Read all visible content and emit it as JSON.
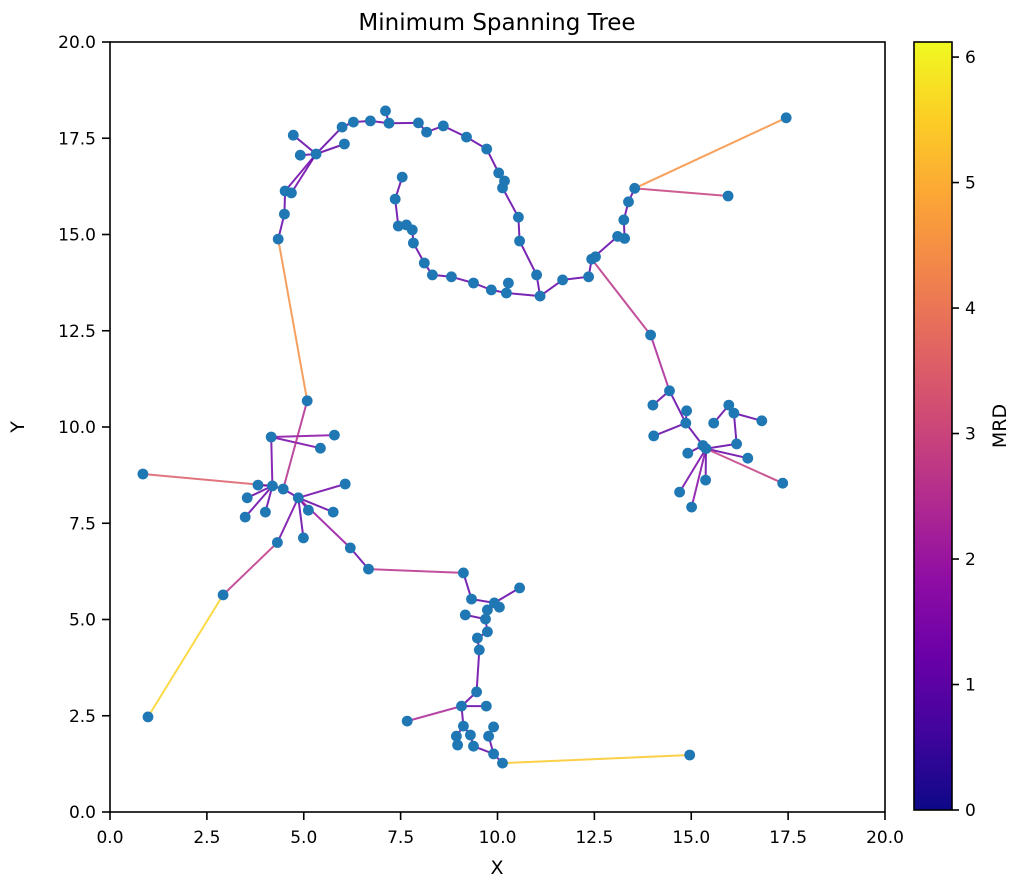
{
  "chart_data": {
    "type": "scatter",
    "title": "Minimum Spanning Tree",
    "xlabel": "X",
    "ylabel": "Y",
    "xlim": [
      0,
      20
    ],
    "ylim": [
      0,
      20
    ],
    "xticks": [
      0,
      2.5,
      5,
      7.5,
      10,
      12.5,
      15,
      17.5,
      20
    ],
    "xtick_labels": [
      "0.0",
      "2.5",
      "5.0",
      "7.5",
      "10.0",
      "12.5",
      "15.0",
      "17.5",
      "20.0"
    ],
    "yticks": [
      0,
      2.5,
      5,
      7.5,
      10,
      12.5,
      15,
      17.5,
      20
    ],
    "ytick_labels": [
      "0.0",
      "2.5",
      "5.0",
      "7.5",
      "10.0",
      "12.5",
      "15.0",
      "17.5",
      "20.0"
    ],
    "grid": false,
    "colorbar": {
      "label": "MRD",
      "vmin": 0,
      "vmax": 6.12,
      "ticks": [
        0,
        1,
        2,
        3,
        4,
        5,
        6
      ],
      "tick_labels": [
        "0",
        "1",
        "2",
        "3",
        "4",
        "5",
        "6"
      ],
      "colormap": "plasma"
    },
    "edge_color_rule": "edge MRD estimated as max(1.1, 1.05*euclidean_length) unless an explicit mrd value is given as third element of edge entry",
    "nodes": [
      [
        4.73,
        17.58
      ],
      [
        4.91,
        17.06
      ],
      [
        5.32,
        17.09
      ],
      [
        5.99,
        17.79
      ],
      [
        6.05,
        17.35
      ],
      [
        6.28,
        17.92
      ],
      [
        6.72,
        17.95
      ],
      [
        7.11,
        18.21
      ],
      [
        7.2,
        17.89
      ],
      [
        7.96,
        17.9
      ],
      [
        8.17,
        17.66
      ],
      [
        8.6,
        17.82
      ],
      [
        9.2,
        17.53
      ],
      [
        9.72,
        17.22
      ],
      [
        10.03,
        16.6
      ],
      [
        10.18,
        16.39
      ],
      [
        10.13,
        16.21
      ],
      [
        10.54,
        15.45
      ],
      [
        10.57,
        14.83
      ],
      [
        11.01,
        13.95
      ],
      [
        4.52,
        16.13
      ],
      [
        4.68,
        16.08
      ],
      [
        4.5,
        15.53
      ],
      [
        4.34,
        14.88
      ],
      [
        7.54,
        16.49
      ],
      [
        7.36,
        15.92
      ],
      [
        7.44,
        15.22
      ],
      [
        7.65,
        15.25
      ],
      [
        7.8,
        15.12
      ],
      [
        7.83,
        14.78
      ],
      [
        8.11,
        14.26
      ],
      [
        8.32,
        13.95
      ],
      [
        8.81,
        13.9
      ],
      [
        9.38,
        13.74
      ],
      [
        9.84,
        13.56
      ],
      [
        10.28,
        13.74
      ],
      [
        10.23,
        13.48
      ],
      [
        11.1,
        13.4
      ],
      [
        11.68,
        13.82
      ],
      [
        12.35,
        13.9
      ],
      [
        12.43,
        14.36
      ],
      [
        12.53,
        14.42
      ],
      [
        13.1,
        14.95
      ],
      [
        13.28,
        14.9
      ],
      [
        13.26,
        15.38
      ],
      [
        13.38,
        15.85
      ],
      [
        13.54,
        16.2
      ],
      [
        17.45,
        18.03
      ],
      [
        15.95,
        16.0
      ],
      [
        13.95,
        12.39
      ],
      [
        14.44,
        10.94
      ],
      [
        14.01,
        10.57
      ],
      [
        14.88,
        10.42
      ],
      [
        14.86,
        10.1
      ],
      [
        14.03,
        9.77
      ],
      [
        15.58,
        10.1
      ],
      [
        15.97,
        10.57
      ],
      [
        16.1,
        10.36
      ],
      [
        16.82,
        10.16
      ],
      [
        15.3,
        9.52
      ],
      [
        15.38,
        9.44
      ],
      [
        14.91,
        9.32
      ],
      [
        16.17,
        9.56
      ],
      [
        16.46,
        9.19
      ],
      [
        17.36,
        8.54
      ],
      [
        15.37,
        8.62
      ],
      [
        14.7,
        8.31
      ],
      [
        15.01,
        7.92
      ],
      [
        0.85,
        8.78
      ],
      [
        3.82,
        8.49
      ],
      [
        4.19,
        8.47
      ],
      [
        4.47,
        8.39
      ],
      [
        3.54,
        8.16
      ],
      [
        3.49,
        7.66
      ],
      [
        4.01,
        7.79
      ],
      [
        4.86,
        8.16
      ],
      [
        5.12,
        7.84
      ],
      [
        5.76,
        7.79
      ],
      [
        6.07,
        8.52
      ],
      [
        4.16,
        9.74
      ],
      [
        5.43,
        9.45
      ],
      [
        5.79,
        9.79
      ],
      [
        5.09,
        10.68
      ],
      [
        4.32,
        7.0
      ],
      [
        4.99,
        7.12
      ],
      [
        6.2,
        6.86
      ],
      [
        6.67,
        6.31
      ],
      [
        2.92,
        5.64
      ],
      [
        0.98,
        2.47
      ],
      [
        9.12,
        6.21
      ],
      [
        10.57,
        5.82
      ],
      [
        9.33,
        5.53
      ],
      [
        9.92,
        5.43
      ],
      [
        10.05,
        5.32
      ],
      [
        9.74,
        5.25
      ],
      [
        9.17,
        5.12
      ],
      [
        9.69,
        5.01
      ],
      [
        9.74,
        4.68
      ],
      [
        9.48,
        4.52
      ],
      [
        9.53,
        4.21
      ],
      [
        9.46,
        3.12
      ],
      [
        9.07,
        2.75
      ],
      [
        9.71,
        2.75
      ],
      [
        7.67,
        2.36
      ],
      [
        9.12,
        2.23
      ],
      [
        9.9,
        2.21
      ],
      [
        8.94,
        1.97
      ],
      [
        9.3,
        2.0
      ],
      [
        9.77,
        1.97
      ],
      [
        8.97,
        1.74
      ],
      [
        9.38,
        1.71
      ],
      [
        9.9,
        1.51
      ],
      [
        10.13,
        1.27
      ],
      [
        14.96,
        1.48
      ]
    ],
    "edges": [
      [
        0,
        2
      ],
      [
        1,
        2
      ],
      [
        2,
        3
      ],
      [
        2,
        4
      ],
      [
        3,
        5
      ],
      [
        5,
        6
      ],
      [
        6,
        8
      ],
      [
        7,
        8
      ],
      [
        8,
        9
      ],
      [
        9,
        10
      ],
      [
        10,
        11
      ],
      [
        11,
        12
      ],
      [
        12,
        13
      ],
      [
        13,
        14
      ],
      [
        14,
        15
      ],
      [
        15,
        16
      ],
      [
        16,
        17
      ],
      [
        17,
        18
      ],
      [
        18,
        19
      ],
      [
        19,
        37
      ],
      [
        2,
        20
      ],
      [
        2,
        21
      ],
      [
        20,
        22
      ],
      [
        22,
        23
      ],
      [
        23,
        82
      ],
      [
        24,
        25
      ],
      [
        25,
        26
      ],
      [
        26,
        27
      ],
      [
        27,
        28
      ],
      [
        28,
        29
      ],
      [
        29,
        30
      ],
      [
        30,
        31
      ],
      [
        31,
        32
      ],
      [
        32,
        33
      ],
      [
        33,
        34
      ],
      [
        34,
        36
      ],
      [
        35,
        36
      ],
      [
        36,
        37
      ],
      [
        37,
        38
      ],
      [
        38,
        39
      ],
      [
        39,
        40
      ],
      [
        40,
        41
      ],
      [
        42,
        40
      ],
      [
        43,
        42
      ],
      [
        44,
        43
      ],
      [
        45,
        44
      ],
      [
        46,
        45
      ],
      [
        46,
        47
      ],
      [
        46,
        48,
        2.9
      ],
      [
        40,
        49
      ],
      [
        49,
        50,
        2.3
      ],
      [
        50,
        51
      ],
      [
        50,
        53
      ],
      [
        52,
        53
      ],
      [
        53,
        54
      ],
      [
        53,
        59
      ],
      [
        59,
        60
      ],
      [
        59,
        61
      ],
      [
        60,
        62
      ],
      [
        55,
        56
      ],
      [
        56,
        57
      ],
      [
        57,
        58
      ],
      [
        57,
        62
      ],
      [
        60,
        63
      ],
      [
        60,
        64,
        2.8
      ],
      [
        60,
        65
      ],
      [
        60,
        66
      ],
      [
        60,
        67
      ],
      [
        68,
        70
      ],
      [
        69,
        70
      ],
      [
        70,
        71
      ],
      [
        71,
        75
      ],
      [
        70,
        72
      ],
      [
        70,
        73
      ],
      [
        70,
        74
      ],
      [
        75,
        76
      ],
      [
        75,
        77
      ],
      [
        75,
        78
      ],
      [
        75,
        83
      ],
      [
        75,
        84
      ],
      [
        75,
        85
      ],
      [
        79,
        70
      ],
      [
        79,
        81
      ],
      [
        79,
        80
      ],
      [
        82,
        71
      ],
      [
        83,
        87,
        2.7
      ],
      [
        87,
        88,
        5.6
      ],
      [
        85,
        86
      ],
      [
        86,
        89
      ],
      [
        89,
        91
      ],
      [
        91,
        92
      ],
      [
        90,
        92
      ],
      [
        92,
        93
      ],
      [
        92,
        96
      ],
      [
        94,
        96
      ],
      [
        95,
        96
      ],
      [
        96,
        97
      ],
      [
        97,
        98
      ],
      [
        98,
        99
      ],
      [
        99,
        100
      ],
      [
        100,
        101
      ],
      [
        101,
        102
      ],
      [
        101,
        103,
        2.3
      ],
      [
        101,
        104
      ],
      [
        104,
        106
      ],
      [
        104,
        107
      ],
      [
        105,
        108
      ],
      [
        106,
        109
      ],
      [
        107,
        110
      ],
      [
        108,
        111
      ],
      [
        110,
        111
      ],
      [
        111,
        112
      ],
      [
        112,
        113,
        5.4
      ]
    ]
  },
  "colors": {
    "marker": "#1f77b4",
    "axis": "#000000",
    "background": "#ffffff",
    "plasma": [
      "#0d0887",
      "#41049d",
      "#6a00a8",
      "#8f0da4",
      "#b12a90",
      "#cc4778",
      "#e16462",
      "#f2844b",
      "#fca636",
      "#fcce25",
      "#f0f921"
    ]
  }
}
